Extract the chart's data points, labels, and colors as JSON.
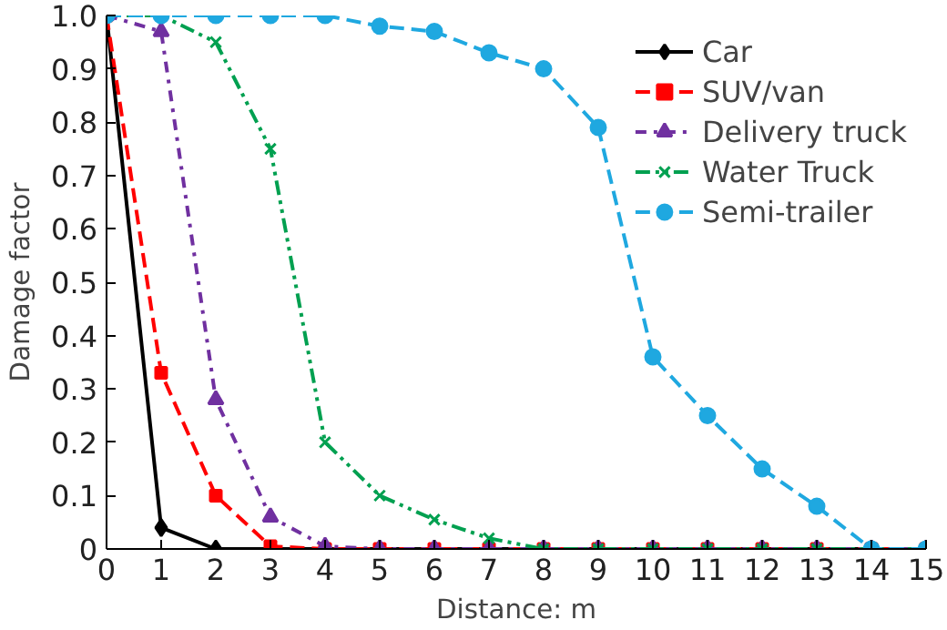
{
  "chart_data": {
    "type": "line",
    "xlabel": "Distance: m",
    "ylabel": "Damage factor",
    "x": [
      0,
      1,
      2,
      3,
      4,
      5,
      6,
      7,
      8,
      9,
      10,
      11,
      12,
      13,
      14,
      15
    ],
    "xlim": [
      0,
      15
    ],
    "xticks": [
      0,
      1,
      2,
      3,
      4,
      5,
      6,
      7,
      8,
      9,
      10,
      11,
      12,
      13,
      14,
      15
    ],
    "ylim": [
      0,
      1
    ],
    "yticks": [
      0,
      0.1,
      0.2,
      0.3,
      0.4,
      0.5,
      0.6,
      0.7,
      0.8,
      0.9,
      {
        "value": 1,
        "label": "1.0"
      }
    ],
    "grid": false,
    "legend": "top right",
    "series": [
      {
        "name": "Car",
        "color": "#000000",
        "marker": "diamond",
        "line_style": "solid",
        "values": [
          1,
          0.04,
          0,
          0,
          0,
          0,
          0,
          0,
          0,
          0,
          0,
          0,
          0,
          0,
          0,
          0
        ]
      },
      {
        "name": "SUV/van",
        "color": "#ff0000",
        "marker": "square",
        "line_style": "dashed",
        "values": [
          1,
          0.33,
          0.1,
          0.005,
          0,
          0,
          0,
          0,
          0,
          0,
          0,
          0,
          0,
          0,
          0,
          0
        ]
      },
      {
        "name": "Delivery truck",
        "color": "#7030a0",
        "marker": "triangle",
        "line_style": "dashdot",
        "values": [
          1,
          0.97,
          0.28,
          0.06,
          0.005,
          0,
          0,
          0,
          0,
          0,
          0,
          0,
          0,
          0,
          0,
          0
        ]
      },
      {
        "name": "Water Truck",
        "color": "#00a050",
        "marker": "x",
        "line_style": "dashdotdot",
        "values": [
          1,
          1,
          0.95,
          0.75,
          0.2,
          0.1,
          0.055,
          0.02,
          0,
          0,
          0,
          0,
          0,
          0,
          0,
          0
        ]
      },
      {
        "name": "Semi-trailer",
        "color": "#1fa8e0",
        "marker": "circle",
        "line_style": "dashed",
        "values": [
          1,
          1,
          1,
          1,
          1,
          0.98,
          0.97,
          0.93,
          0.9,
          0.79,
          0.36,
          0.25,
          0.15,
          0.08,
          0,
          0
        ]
      }
    ]
  }
}
